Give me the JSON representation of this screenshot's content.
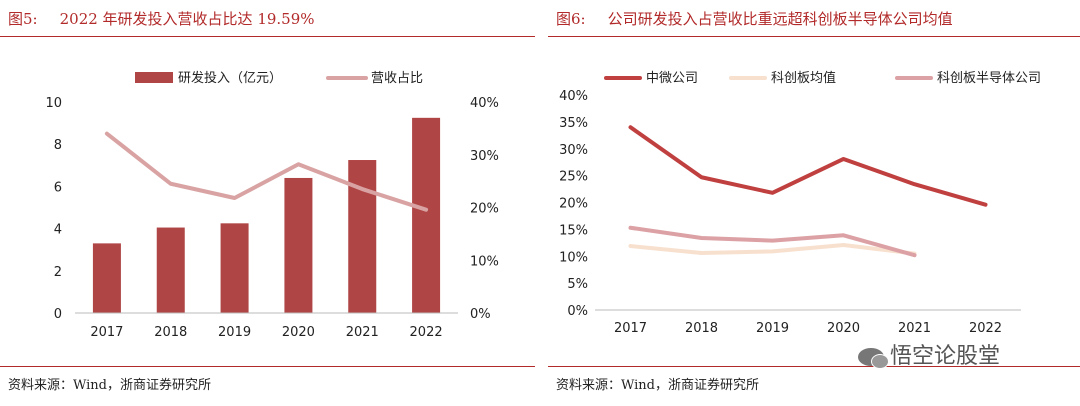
{
  "left": {
    "figure_label": "图5:",
    "title": "2022 年研发投入营收占比达 19.59%",
    "source": "资料来源：Wind，浙商证券研究所",
    "colors": {
      "bar": "#b04545",
      "line": "#d9a3a3",
      "title": "#b22a2a"
    },
    "chart_data": {
      "type": "bar+line",
      "categories": [
        "2017",
        "2018",
        "2019",
        "2020",
        "2021",
        "2022"
      ],
      "series": [
        {
          "name": "研发投入（亿元）",
          "type": "bar",
          "axis": "left",
          "values": [
            3.3,
            4.05,
            4.25,
            6.4,
            7.25,
            9.25
          ]
        },
        {
          "name": "营收占比",
          "type": "line",
          "axis": "right",
          "values": [
            34,
            24.5,
            21.8,
            28.2,
            23.5,
            19.59
          ]
        }
      ],
      "y_left": {
        "min": 0,
        "max": 10,
        "ticks": [
          "0",
          "2",
          "4",
          "6",
          "8",
          "10"
        ]
      },
      "y_right": {
        "min": 0,
        "max": 40,
        "ticks": [
          "0%",
          "10%",
          "20%",
          "30%",
          "40%"
        ]
      },
      "legend": "top"
    }
  },
  "right": {
    "figure_label": "图6:",
    "title": "公司研发投入占营收比重远超科创板半导体公司均值",
    "source": "资料来源：Wind，浙商证券研究所",
    "watermark": "悟空论股堂",
    "colors": {
      "title": "#b22a2a"
    },
    "chart_data": {
      "type": "line",
      "categories": [
        "2017",
        "2018",
        "2019",
        "2020",
        "2021",
        "2022"
      ],
      "series": [
        {
          "name": "中微公司",
          "color": "#c04040",
          "values": [
            34,
            24.7,
            21.8,
            28.1,
            23.4,
            19.6
          ]
        },
        {
          "name": "科创板均值",
          "color": "#f8e0cf",
          "values": [
            11.9,
            10.6,
            10.9,
            12.1,
            10.5,
            null
          ]
        },
        {
          "name": "科创板半导体公司",
          "color": "#dca1a4",
          "values": [
            15.3,
            13.4,
            12.9,
            13.9,
            10.2,
            null
          ]
        }
      ],
      "y": {
        "min": 0,
        "max": 40,
        "ticks": [
          "0%",
          "5%",
          "10%",
          "15%",
          "20%",
          "25%",
          "30%",
          "35%",
          "40%"
        ]
      },
      "legend": "top"
    }
  }
}
